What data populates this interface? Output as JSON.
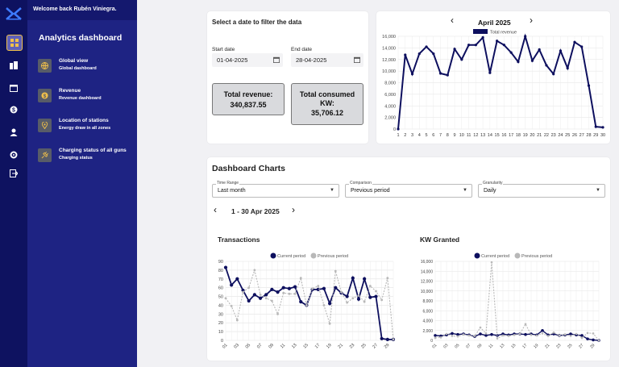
{
  "header": {
    "welcome": "Welcome back Rubén Viniegra."
  },
  "rail": {
    "icons": [
      "dashboard-icon",
      "buildings-icon",
      "calendar-icon",
      "dollar-icon",
      "user-icon",
      "gear-icon",
      "logout-icon"
    ]
  },
  "menu": {
    "title": "Analytics dashboard",
    "items": [
      {
        "title": "Global view",
        "subtitle": "Global dashboard",
        "icon": "globe-icon"
      },
      {
        "title": "Revenue",
        "subtitle": "Revenue dashboard",
        "icon": "dollar-icon"
      },
      {
        "title": "Location of stations",
        "subtitle": "Energy draw in all zones",
        "icon": "location-icon"
      },
      {
        "title": "Charging status of all guns",
        "subtitle": "Charging status",
        "icon": "plug-icon"
      }
    ]
  },
  "filter": {
    "title": "Select a date to filter the data",
    "start_label": "Start date",
    "start_value": "01-04-2025",
    "end_label": "End date",
    "end_value": "28-04-2025",
    "kpi_revenue_label": "Total revenue:",
    "kpi_revenue_value": "340,837.55",
    "kpi_kw_label_1": "Total consumed",
    "kpi_kw_label_2": "KW:",
    "kpi_kw_value": "35,706.12"
  },
  "revenue_chart": {
    "month": "April 2025",
    "prev": "‹",
    "next": "›"
  },
  "dashboard": {
    "title": "Dashboard Charts",
    "time_range_label": "Time Range",
    "time_range_value": "Last month",
    "comparison_label": "Comparison",
    "comparison_value": "Previous period",
    "granularity_label": "Granularity",
    "granularity_value": "Daily",
    "period": "1 - 30 Apr 2025",
    "prev": "‹",
    "next": "›"
  },
  "chart_data": [
    {
      "type": "line",
      "legend": [
        "Total revenue"
      ],
      "x": [
        "1",
        "2",
        "3",
        "4",
        "5",
        "6",
        "7",
        "8",
        "9",
        "10",
        "11",
        "12",
        "13",
        "14",
        "15",
        "16",
        "17",
        "18",
        "19",
        "20",
        "21",
        "22",
        "23",
        "24",
        "25",
        "26",
        "27",
        "28",
        "29",
        "30"
      ],
      "series": [
        {
          "name": "Total revenue",
          "values": [
            0,
            12800,
            9500,
            13000,
            14200,
            13000,
            9600,
            9300,
            13800,
            12000,
            14500,
            14500,
            15800,
            9700,
            15200,
            14500,
            13200,
            11600,
            16000,
            11800,
            13700,
            11000,
            9500,
            13500,
            10500,
            15000,
            14200,
            7500,
            400,
            300
          ]
        }
      ],
      "ylim": [
        0,
        16000
      ],
      "yticks": [
        0,
        2000,
        4000,
        6000,
        8000,
        10000,
        12000,
        14000,
        16000
      ]
    },
    {
      "type": "line",
      "title": "Transactions",
      "x": [
        "01",
        "02",
        "03",
        "04",
        "05",
        "06",
        "07",
        "08",
        "09",
        "10",
        "11",
        "12",
        "13",
        "14",
        "15",
        "16",
        "17",
        "18",
        "19",
        "20",
        "21",
        "22",
        "23",
        "24",
        "25",
        "26",
        "27",
        "28",
        "29",
        "30"
      ],
      "series": [
        {
          "name": "Current period",
          "values": [
            83,
            63,
            70,
            57,
            45,
            52,
            48,
            52,
            58,
            55,
            60,
            59,
            61,
            44,
            40,
            58,
            58,
            59,
            42,
            60,
            54,
            50,
            71,
            47,
            70,
            49,
            50,
            2,
            1,
            1
          ]
        },
        {
          "name": "Previous period",
          "values": [
            48,
            39,
            23,
            55,
            60,
            80,
            52,
            48,
            45,
            30,
            54,
            53,
            53,
            71,
            40,
            59,
            62,
            40,
            19,
            79,
            55,
            43,
            48,
            51,
            44,
            62,
            56,
            46,
            71,
            1
          ]
        }
      ],
      "ylim": [
        0,
        90
      ],
      "yticks": [
        0,
        10,
        20,
        30,
        40,
        50,
        60,
        70,
        80,
        90
      ]
    },
    {
      "type": "line",
      "title": "KW Granted",
      "x": [
        "01",
        "02",
        "03",
        "04",
        "05",
        "06",
        "07",
        "08",
        "09",
        "10",
        "11",
        "12",
        "13",
        "14",
        "15",
        "16",
        "17",
        "18",
        "19",
        "20",
        "21",
        "22",
        "23",
        "24",
        "25",
        "26",
        "27",
        "28",
        "29",
        "30"
      ],
      "series": [
        {
          "name": "Current period",
          "values": [
            1000,
            900,
            1100,
            1400,
            1200,
            1300,
            1100,
            800,
            1300,
            1000,
            1200,
            1000,
            1300,
            1100,
            1300,
            1300,
            1200,
            1300,
            1100,
            2000,
            1100,
            1300,
            1000,
            1100,
            1300,
            1100,
            1000,
            300,
            100,
            0
          ]
        },
        {
          "name": "Previous period",
          "values": [
            500,
            600,
            1300,
            900,
            800,
            1200,
            1000,
            900,
            2600,
            1400,
            15800,
            400,
            1000,
            900,
            1100,
            1300,
            3300,
            1100,
            1000,
            1400,
            900,
            1600,
            1000,
            1200,
            900,
            1300,
            500,
            1500,
            1400,
            0
          ]
        }
      ],
      "ylim": [
        0,
        16000
      ],
      "yticks": [
        0,
        2000,
        4000,
        6000,
        8000,
        10000,
        12000,
        14000,
        16000
      ]
    }
  ],
  "colors": {
    "current": "#0d0f5e",
    "previous": "#b8b8b8",
    "sidebar": "#1e2383",
    "rail": "#0e1260"
  }
}
